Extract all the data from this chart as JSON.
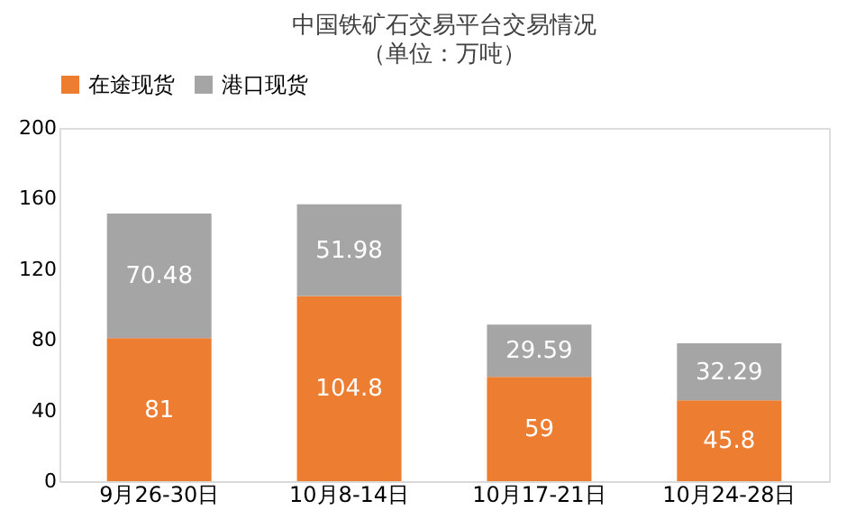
{
  "chart_data": {
    "type": "bar",
    "title": "中国铁矿石交易平台交易情况",
    "subtitle": "（单位：万吨）",
    "categories": [
      "9月26-30日",
      "10月8-14日",
      "10月17-21日",
      "10月24-28日"
    ],
    "series": [
      {
        "name": "在途现货",
        "color": "#ed7d31",
        "values": [
          81,
          104.8,
          59,
          45.8
        ]
      },
      {
        "name": "港口现货",
        "color": "#a5a5a5",
        "values": [
          70.48,
          51.98,
          29.59,
          32.29
        ]
      }
    ],
    "stacked": true,
    "ylim": [
      0,
      200
    ],
    "yticks": [
      0,
      40,
      80,
      120,
      160,
      200
    ],
    "grid": false,
    "legend": "top",
    "data_labels": true
  }
}
